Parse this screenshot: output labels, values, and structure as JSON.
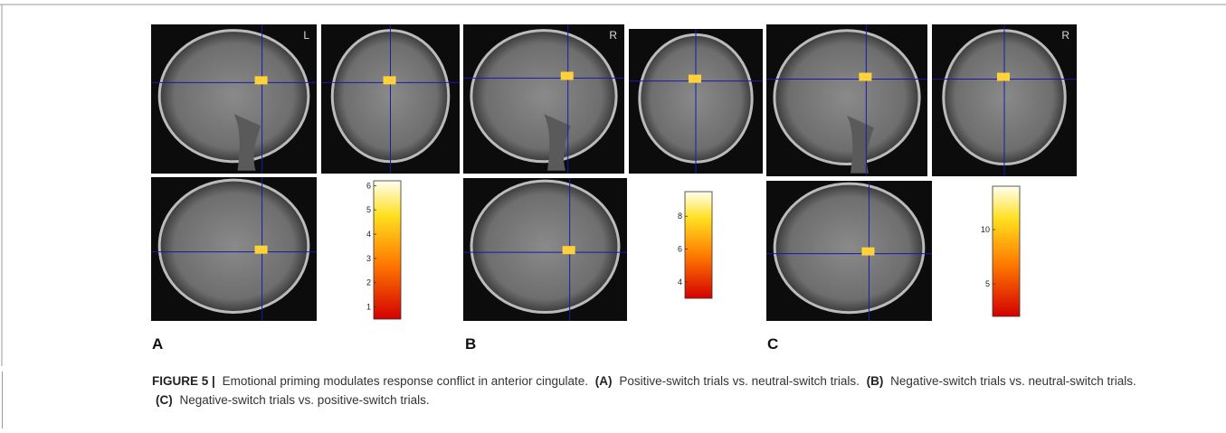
{
  "figure": {
    "panels": [
      {
        "label": "A",
        "orientation": "L",
        "colorbar_range": [
          0.5,
          6.2
        ],
        "colorbar_ticks": [
          1,
          2,
          3,
          4,
          5,
          6
        ]
      },
      {
        "label": "B",
        "orientation": "R",
        "colorbar_range": [
          3,
          9.5
        ],
        "colorbar_ticks": [
          4,
          6,
          8
        ]
      },
      {
        "label": "C",
        "orientation": "R",
        "colorbar_range": [
          2,
          14
        ],
        "colorbar_ticks": [
          5,
          10
        ]
      }
    ],
    "caption": {
      "figure_label": "FIGURE 5 |",
      "text": "Emotional priming modulates response conflict in anterior cingulate.",
      "parts": [
        {
          "label": "(A)",
          "text": "Positive-switch trials vs. neutral-switch trials."
        },
        {
          "label": "(B)",
          "text": "Negative-switch trials vs. neutral-switch trials."
        },
        {
          "label": "(C)",
          "text": "Negative-switch trials vs. positive-switch trials."
        }
      ]
    }
  }
}
